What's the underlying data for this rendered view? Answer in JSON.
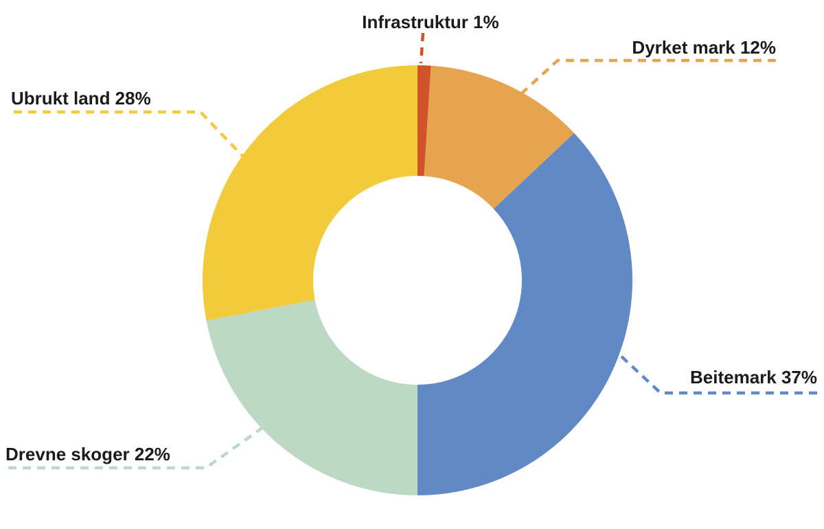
{
  "chart_data": {
    "type": "pie",
    "subtype": "donut",
    "title": "",
    "unit": "%",
    "direction": "clockwise",
    "start_angle_deg": 0,
    "legend_position": "callout-labels",
    "background": "#ffffff",
    "label_color": "#1b1b1b",
    "slices": [
      {
        "label": "Infrastruktur",
        "value": 1,
        "display": "Infrastruktur 1%",
        "color": "#d1532a"
      },
      {
        "label": "Dyrket mark",
        "value": 12,
        "display": "Dyrket mark 12%",
        "color": "#e6a44e"
      },
      {
        "label": "Beitemark",
        "value": 37,
        "display": "Beitemark 37%",
        "color": "#6189c6"
      },
      {
        "label": "Drevne skoger",
        "value": 22,
        "display": "Drevne skoger 22%",
        "color": "#bdd9c4"
      },
      {
        "label": "Ubrukt land",
        "value": 28,
        "display": "Ubrukt land 28%",
        "color": "#f2cb3d"
      }
    ]
  }
}
